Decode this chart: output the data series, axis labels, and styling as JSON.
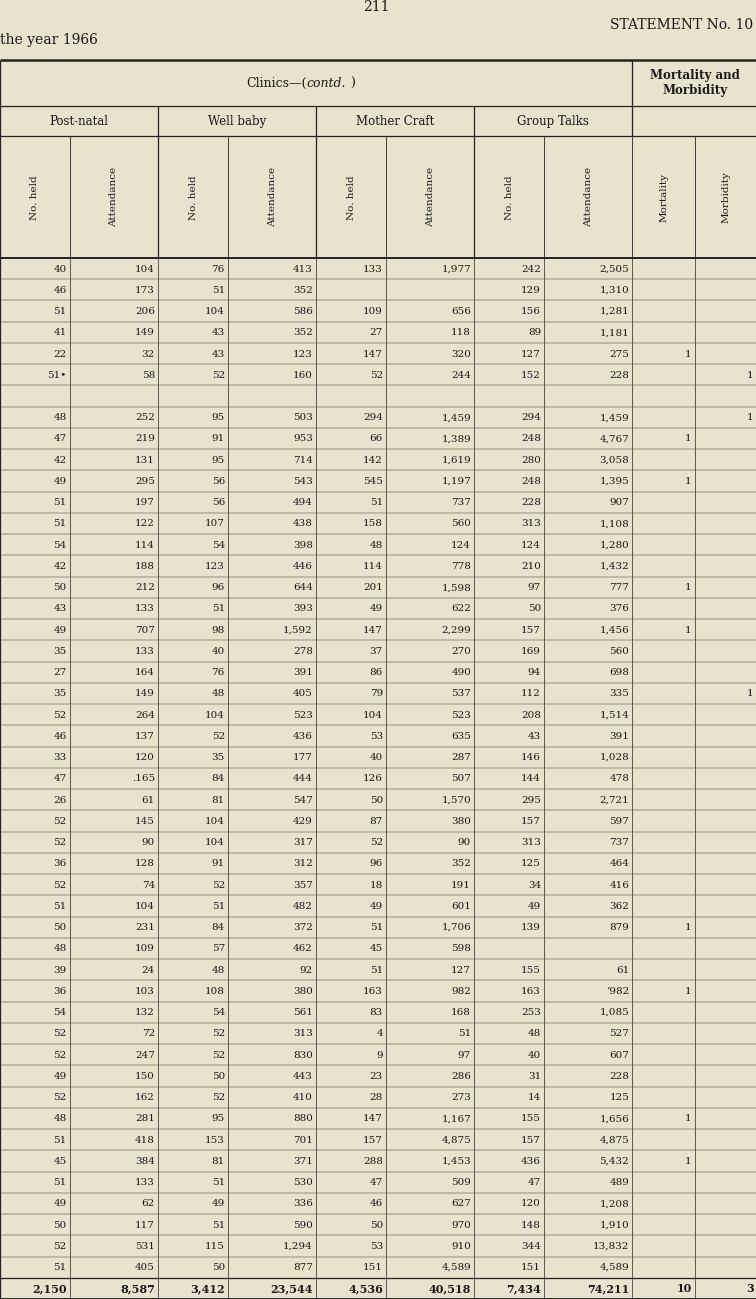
{
  "page_number": "211",
  "statement": "STATEMENT No. 10",
  "year": "the year 1966",
  "main_header_normal": "Clinics—(",
  "main_header_italic": "contd.",
  "main_header_end": ")",
  "right_header": "Mortality and\nMorbidity",
  "col_groups": [
    "Post-natal",
    "Well baby",
    "Mother Craft",
    "Group Talks"
  ],
  "col_headers": [
    "No. held",
    "Attendance",
    "No. held",
    "Attendance",
    "No. held",
    "Attendance",
    "No. held",
    "Attendance",
    "Mortality",
    "Morbidity"
  ],
  "rows": [
    [
      "40",
      "104",
      "76",
      "413",
      "133",
      "1,977",
      "242",
      "2,505",
      "..",
      ".."
    ],
    [
      "46",
      "173",
      "51",
      "352",
      "..",
      "..",
      "129",
      "1,310",
      "..",
      ".."
    ],
    [
      "51",
      "206",
      "104",
      "586",
      "109",
      "656",
      "156",
      "1,281",
      "..",
      ".."
    ],
    [
      "41",
      "149",
      "43",
      "352",
      "27",
      "118",
      "89",
      "1,181",
      "..",
      ".."
    ],
    [
      "22",
      "32",
      "43",
      "123",
      "147",
      "320",
      "127",
      "275",
      "1",
      ".."
    ],
    [
      "51•",
      "58",
      "52",
      "160",
      "52",
      "244",
      "152",
      "228",
      "..",
      "1"
    ],
    [
      "..",
      "..",
      "..",
      "..",
      "..",
      "..",
      "..",
      "..",
      "..",
      ".."
    ],
    [
      "48",
      "252",
      "95",
      "503",
      "294",
      "1,459",
      "294",
      "1,459",
      "..",
      "1"
    ],
    [
      "47",
      "219",
      "91",
      "953",
      "66",
      "1,389",
      "248",
      "4,767",
      "1",
      ".."
    ],
    [
      "42",
      "131",
      "95",
      "714",
      "142",
      "1,619",
      "280",
      "3,058",
      "..",
      ".."
    ],
    [
      "49",
      "295",
      "56",
      "543",
      "545",
      "1,197",
      "248",
      "1,395",
      "1",
      ".."
    ],
    [
      "51",
      "197",
      "56",
      "494",
      "51",
      "737",
      "228",
      "907",
      "..",
      ".."
    ],
    [
      "51",
      "122",
      "107",
      "438",
      "158",
      "560",
      "313",
      "1,108",
      "..",
      ".."
    ],
    [
      "54",
      "114",
      "54",
      "398",
      "48",
      "124",
      "124",
      "1,280",
      "..",
      ".."
    ],
    [
      "42",
      "188",
      "123",
      "446",
      "114",
      "778",
      "210",
      "1,432",
      "..",
      ".."
    ],
    [
      "50",
      "212",
      "96",
      "644",
      "201",
      "1,598",
      "97",
      "777",
      "1",
      ".."
    ],
    [
      "43",
      "133",
      "51",
      "393",
      "49",
      "622",
      "50",
      "376",
      "..",
      ".."
    ],
    [
      "49",
      "707",
      "98",
      "1,592",
      "147",
      "2,299",
      "157",
      "1,456",
      "1",
      ".."
    ],
    [
      "35",
      "133",
      "40",
      "278",
      "37",
      "270",
      "169",
      "560",
      "..",
      ".."
    ],
    [
      "27",
      "164",
      "76",
      "391",
      "86",
      "490",
      "94",
      "698",
      "..",
      ".."
    ],
    [
      "35",
      "149",
      "48",
      "405",
      "79",
      "537",
      "112",
      "335",
      "..",
      "1"
    ],
    [
      "52",
      "264",
      "104",
      "523",
      "104",
      "523",
      "208",
      "1,514",
      "..",
      ".."
    ],
    [
      "46",
      "137",
      "52",
      "436",
      "53",
      "635",
      "43",
      "391",
      "..",
      ".."
    ],
    [
      "33",
      "120",
      "35",
      "177",
      "40",
      "287",
      "146",
      "1,028",
      "..",
      ".."
    ],
    [
      "47",
      ".165",
      "84",
      "444",
      "126",
      "507",
      "144",
      "478",
      "..",
      ".."
    ],
    [
      "26",
      "61",
      "81",
      "547",
      "50",
      "1,570",
      "295",
      "2,721",
      "..",
      ".."
    ],
    [
      "52",
      "145",
      "104",
      "429",
      "87",
      "380",
      "157",
      "597",
      "..",
      ".."
    ],
    [
      "52",
      "90",
      "104",
      "317",
      "52",
      "90",
      "313",
      "737",
      "..",
      ".."
    ],
    [
      "36",
      "128",
      "91",
      "312",
      "96",
      "352",
      "125",
      "464",
      "..",
      ".."
    ],
    [
      "52",
      "74",
      "52",
      "357",
      "18",
      "191",
      "34",
      "416",
      "..",
      ".."
    ],
    [
      "51",
      "104",
      "51",
      "482",
      "49",
      "601",
      "49",
      "362",
      "..",
      ".."
    ],
    [
      "50",
      "231",
      "84",
      "372",
      "51",
      "1,706",
      "139",
      "879",
      "1",
      ".."
    ],
    [
      "48",
      "109",
      "57",
      "462",
      "45",
      "598",
      "..",
      "..",
      "..",
      ".."
    ],
    [
      "39",
      "24",
      "48",
      "92",
      "51",
      "127",
      "155",
      "61",
      "..",
      ".."
    ],
    [
      "36",
      "103",
      "108",
      "380",
      "163",
      "982",
      "163",
      "’982",
      "1",
      ".."
    ],
    [
      "54",
      "132",
      "54",
      "561",
      "83",
      "168",
      "253",
      "1,085",
      "..",
      ".."
    ],
    [
      "52",
      "72",
      "52",
      "313",
      "4",
      "51",
      "48",
      "527",
      "..",
      ".."
    ],
    [
      "52",
      "247",
      "52",
      "830",
      "9",
      "97",
      "40",
      "607",
      "..",
      ".."
    ],
    [
      "49",
      "150",
      "50",
      "443",
      "23",
      "286",
      "31",
      "228",
      "..",
      ".."
    ],
    [
      "52",
      "162",
      "52",
      "410",
      "28",
      "273",
      "14",
      "125",
      "..",
      ".."
    ],
    [
      "48",
      "281",
      "95",
      "880",
      "147",
      "1,167",
      "155",
      "1,656",
      "1",
      ".."
    ],
    [
      "51",
      "418",
      "153",
      "701",
      "157",
      "4,875",
      "157",
      "4,875",
      "..",
      ".."
    ],
    [
      "45",
      "384",
      "81",
      "371",
      "288",
      "1,453",
      "436",
      "5,432",
      "1",
      ".."
    ],
    [
      "51",
      "133",
      "51",
      "530",
      "47",
      "509",
      "47",
      "489",
      "..",
      ".."
    ],
    [
      "49",
      "62",
      "49",
      "336",
      "46",
      "627",
      "120",
      "1,208",
      "..",
      ".."
    ],
    [
      "50",
      "117",
      "51",
      "590",
      "50",
      "970",
      "148",
      "1,910",
      "..",
      ".."
    ],
    [
      "52",
      "531",
      "115",
      "1,294",
      "53",
      "910",
      "344",
      "13,832",
      "..",
      ".."
    ],
    [
      "51",
      "405",
      "50",
      "877",
      "151",
      "4,589",
      "151",
      "4,589",
      "..",
      ".."
    ],
    [
      "2,150",
      "8,587",
      "3,412",
      "23,544",
      "4,536",
      "40,518",
      "7,434",
      "74,211",
      "10",
      "3"
    ]
  ],
  "bg_color": "#e8e3cc",
  "text_color": "#1a1a1a",
  "line_color": "#222222"
}
